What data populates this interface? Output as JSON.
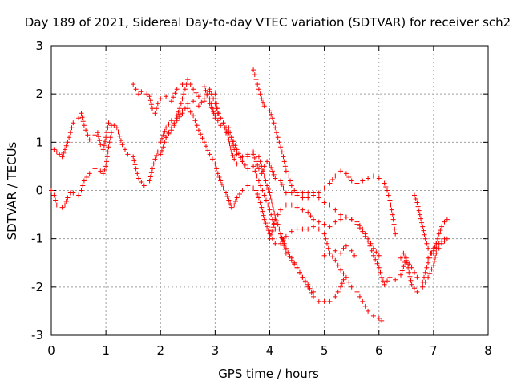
{
  "chart_data": {
    "type": "scatter",
    "title": "Day 189 of 2021, Sidereal Day-to-day VTEC variation (SDTVAR) for receiver sch2",
    "xlabel": "GPS time / hours",
    "ylabel": "SDTVAR / TECUs",
    "xlim": [
      0,
      8
    ],
    "ylim": [
      -3,
      3
    ],
    "x_ticks": [
      "0",
      "1",
      "2",
      "3",
      "4",
      "5",
      "6",
      "7",
      "8"
    ],
    "y_ticks": [
      "-3",
      "-2",
      "-1",
      "0",
      "1",
      "2",
      "3"
    ],
    "grid": true,
    "marker": "plus",
    "color": "#ff0000",
    "tracks": [
      [
        [
          0.0,
          0.0
        ],
        [
          0.05,
          -0.1
        ],
        [
          0.1,
          -0.3
        ],
        [
          0.2,
          -0.35
        ],
        [
          0.25,
          -0.3
        ],
        [
          0.3,
          -0.15
        ],
        [
          0.35,
          -0.05
        ],
        [
          0.4,
          -0.05
        ],
        [
          0.5,
          -0.1
        ],
        [
          0.55,
          0.0
        ],
        [
          0.6,
          0.2
        ],
        [
          0.7,
          0.35
        ],
        [
          0.8,
          0.45
        ],
        [
          0.9,
          0.4
        ],
        [
          0.95,
          0.35
        ],
        [
          1.0,
          0.5
        ],
        [
          1.05,
          0.9
        ],
        [
          1.1,
          1.2
        ],
        [
          1.2,
          1.3
        ],
        [
          1.3,
          0.95
        ],
        [
          1.4,
          0.75
        ],
        [
          1.5,
          0.7
        ],
        [
          1.55,
          0.45
        ],
        [
          1.6,
          0.25
        ],
        [
          1.7,
          0.1
        ],
        [
          1.8,
          0.2
        ],
        [
          1.85,
          0.45
        ],
        [
          1.9,
          0.65
        ],
        [
          1.95,
          0.8
        ],
        [
          2.0,
          0.75
        ],
        [
          2.05,
          0.9
        ],
        [
          2.1,
          1.1
        ],
        [
          2.2,
          1.25
        ],
        [
          2.3,
          1.45
        ],
        [
          2.4,
          1.6
        ],
        [
          2.5,
          1.8
        ],
        [
          2.6,
          1.85
        ],
        [
          2.7,
          1.75
        ],
        [
          2.8,
          1.9
        ],
        [
          2.9,
          2.05
        ],
        [
          3.0,
          2.0
        ],
        [
          3.05,
          1.6
        ],
        [
          3.1,
          1.5
        ],
        [
          3.15,
          1.4
        ],
        [
          3.2,
          1.2
        ],
        [
          3.25,
          1.3
        ],
        [
          3.3,
          1.1
        ],
        [
          3.35,
          0.85
        ],
        [
          3.4,
          0.75
        ],
        [
          3.5,
          0.7
        ],
        [
          3.6,
          0.75
        ],
        [
          3.7,
          0.8
        ],
        [
          3.8,
          0.7
        ],
        [
          3.85,
          0.5
        ],
        [
          3.9,
          0.3
        ],
        [
          3.95,
          0.1
        ],
        [
          4.0,
          -0.05
        ],
        [
          4.05,
          -0.3
        ],
        [
          4.1,
          -0.55
        ],
        [
          4.15,
          -0.7
        ],
        [
          4.2,
          -0.9
        ],
        [
          4.3,
          -1.2
        ],
        [
          4.4,
          -1.45
        ],
        [
          4.5,
          -1.6
        ],
        [
          4.6,
          -1.8
        ],
        [
          4.7,
          -1.95
        ],
        [
          4.8,
          -2.2
        ],
        [
          4.9,
          -2.3
        ],
        [
          5.0,
          -2.3
        ],
        [
          5.1,
          -2.3
        ],
        [
          5.2,
          -2.2
        ],
        [
          5.3,
          -2.0
        ],
        [
          5.35,
          -1.85
        ]
      ],
      [
        [
          0.05,
          0.85
        ],
        [
          0.1,
          0.8
        ],
        [
          0.15,
          0.75
        ],
        [
          0.2,
          0.7
        ],
        [
          0.25,
          0.85
        ],
        [
          0.3,
          1.0
        ],
        [
          0.35,
          1.2
        ],
        [
          0.4,
          1.4
        ],
        [
          0.5,
          1.5
        ],
        [
          0.55,
          1.6
        ],
        [
          0.6,
          1.35
        ],
        [
          0.7,
          1.05
        ],
        [
          0.8,
          1.15
        ],
        [
          0.85,
          1.2
        ],
        [
          0.9,
          0.95
        ],
        [
          0.95,
          0.85
        ],
        [
          1.0,
          1.1
        ],
        [
          1.05,
          1.4
        ],
        [
          1.1,
          1.35
        ],
        [
          1.15,
          1.35
        ]
      ],
      [
        [
          1.5,
          2.2
        ],
        [
          1.55,
          2.1
        ],
        [
          1.6,
          2.0
        ],
        [
          1.65,
          2.05
        ],
        [
          1.75,
          2.0
        ],
        [
          1.8,
          1.95
        ],
        [
          1.85,
          1.7
        ],
        [
          1.9,
          1.6
        ],
        [
          1.95,
          1.8
        ],
        [
          2.0,
          1.9
        ],
        [
          2.1,
          1.95
        ],
        [
          2.2,
          1.85
        ],
        [
          2.3,
          2.1
        ],
        [
          2.4,
          2.2
        ],
        [
          2.5,
          2.3
        ],
        [
          2.6,
          2.1
        ],
        [
          2.7,
          1.95
        ],
        [
          2.8,
          1.85
        ],
        [
          2.9,
          1.8
        ],
        [
          3.0,
          1.55
        ],
        [
          3.1,
          1.35
        ],
        [
          3.2,
          1.3
        ],
        [
          3.25,
          1.05
        ],
        [
          3.3,
          0.8
        ],
        [
          3.35,
          0.65
        ],
        [
          3.4,
          0.55
        ],
        [
          3.5,
          0.6
        ],
        [
          3.6,
          0.7
        ],
        [
          3.7,
          0.75
        ],
        [
          3.75,
          0.6
        ],
        [
          3.8,
          0.45
        ],
        [
          3.85,
          0.35
        ],
        [
          3.9,
          0.5
        ],
        [
          3.95,
          0.6
        ],
        [
          4.0,
          0.55
        ],
        [
          4.05,
          0.4
        ],
        [
          4.1,
          0.25
        ],
        [
          4.2,
          0.2
        ],
        [
          4.25,
          0.05
        ],
        [
          4.3,
          -0.05
        ],
        [
          4.4,
          -0.05
        ],
        [
          4.5,
          -0.05
        ],
        [
          4.6,
          -0.05
        ],
        [
          4.7,
          -0.05
        ],
        [
          4.8,
          -0.1
        ],
        [
          4.9,
          -0.15
        ],
        [
          5.0,
          -0.25
        ],
        [
          5.1,
          -0.3
        ],
        [
          5.2,
          -0.4
        ],
        [
          5.3,
          -0.5
        ],
        [
          5.4,
          -0.55
        ],
        [
          5.5,
          -0.6
        ],
        [
          5.6,
          -0.7
        ],
        [
          5.7,
          -0.85
        ],
        [
          5.8,
          -1.05
        ],
        [
          5.9,
          -1.35
        ],
        [
          6.0,
          -1.6
        ],
        [
          6.05,
          -1.8
        ],
        [
          6.1,
          -1.95
        ],
        [
          6.2,
          -1.8
        ],
        [
          6.3,
          -1.85
        ],
        [
          6.4,
          -1.75
        ],
        [
          6.5,
          -1.4
        ],
        [
          6.55,
          -1.7
        ],
        [
          6.6,
          -1.95
        ],
        [
          6.7,
          -2.1
        ],
        [
          6.8,
          -2.0
        ],
        [
          6.9,
          -1.8
        ],
        [
          7.0,
          -1.55
        ],
        [
          7.05,
          -1.3
        ],
        [
          7.1,
          -1.2
        ],
        [
          7.2,
          -1.0
        ]
      ],
      [
        [
          2.5,
          2.3
        ],
        [
          2.45,
          2.1
        ],
        [
          2.4,
          1.9
        ],
        [
          2.35,
          1.7
        ],
        [
          2.3,
          1.55
        ],
        [
          2.2,
          1.45
        ],
        [
          2.1,
          1.3
        ],
        [
          2.05,
          1.15
        ],
        [
          2.0,
          1.0
        ],
        [
          2.1,
          1.1
        ],
        [
          2.2,
          1.3
        ],
        [
          2.3,
          1.5
        ],
        [
          2.4,
          1.65
        ],
        [
          2.5,
          1.7
        ],
        [
          2.6,
          1.55
        ],
        [
          2.7,
          1.25
        ],
        [
          2.8,
          1.0
        ],
        [
          2.9,
          0.75
        ],
        [
          3.0,
          0.55
        ],
        [
          3.05,
          0.35
        ],
        [
          3.1,
          0.2
        ],
        [
          3.15,
          0.05
        ],
        [
          3.2,
          -0.05
        ],
        [
          3.25,
          -0.2
        ],
        [
          3.3,
          -0.35
        ],
        [
          3.35,
          -0.3
        ],
        [
          3.4,
          -0.15
        ],
        [
          3.5,
          0.0
        ],
        [
          3.6,
          0.1
        ],
        [
          3.7,
          0.05
        ],
        [
          3.75,
          0.0
        ],
        [
          3.8,
          -0.15
        ],
        [
          3.85,
          -0.35
        ],
        [
          3.9,
          -0.6
        ],
        [
          3.95,
          -0.75
        ],
        [
          4.0,
          -0.9
        ],
        [
          4.05,
          -1.0
        ],
        [
          4.1,
          -1.1
        ],
        [
          4.2,
          -1.1
        ],
        [
          4.3,
          -0.95
        ],
        [
          4.4,
          -0.85
        ],
        [
          4.5,
          -0.8
        ],
        [
          4.6,
          -0.8
        ],
        [
          4.7,
          -0.8
        ],
        [
          4.8,
          -0.75
        ],
        [
          4.9,
          -0.8
        ],
        [
          5.0,
          -0.9
        ],
        [
          5.05,
          -1.1
        ],
        [
          5.1,
          -1.3
        ],
        [
          5.2,
          -1.45
        ],
        [
          5.3,
          -1.65
        ],
        [
          5.4,
          -1.8
        ],
        [
          5.45,
          -1.9
        ],
        [
          5.5,
          -2.0
        ],
        [
          5.6,
          -2.1
        ],
        [
          5.7,
          -2.3
        ],
        [
          5.8,
          -2.5
        ],
        [
          5.9,
          -2.6
        ],
        [
          6.0,
          -2.65
        ],
        [
          6.05,
          -2.7
        ]
      ],
      [
        [
          3.7,
          2.5
        ],
        [
          3.75,
          2.3
        ],
        [
          3.8,
          2.1
        ],
        [
          3.85,
          1.9
        ],
        [
          3.9,
          1.75
        ],
        [
          4.0,
          1.65
        ],
        [
          4.05,
          1.5
        ],
        [
          4.1,
          1.3
        ],
        [
          4.15,
          1.1
        ],
        [
          4.2,
          0.9
        ],
        [
          4.25,
          0.7
        ],
        [
          4.3,
          0.4
        ],
        [
          4.35,
          0.3
        ],
        [
          4.4,
          0.1
        ],
        [
          4.45,
          0.0
        ],
        [
          4.5,
          -0.1
        ],
        [
          4.6,
          -0.15
        ],
        [
          4.7,
          -0.15
        ],
        [
          4.8,
          -0.05
        ],
        [
          4.9,
          -0.05
        ],
        [
          5.0,
          0.05
        ],
        [
          5.1,
          0.15
        ],
        [
          5.2,
          0.3
        ],
        [
          5.3,
          0.4
        ],
        [
          5.4,
          0.35
        ],
        [
          5.5,
          0.2
        ],
        [
          5.6,
          0.15
        ],
        [
          5.7,
          0.2
        ],
        [
          5.8,
          0.25
        ],
        [
          5.9,
          0.3
        ],
        [
          6.0,
          0.25
        ],
        [
          6.1,
          0.15
        ],
        [
          6.15,
          0.0
        ],
        [
          6.2,
          -0.2
        ],
        [
          6.25,
          -0.5
        ],
        [
          6.3,
          -0.9
        ]
      ],
      [
        [
          3.0,
          1.5
        ],
        [
          2.95,
          1.7
        ],
        [
          2.9,
          1.9
        ],
        [
          2.85,
          2.0
        ],
        [
          2.8,
          2.15
        ],
        [
          2.9,
          2.1
        ],
        [
          3.0,
          1.8
        ],
        [
          3.1,
          1.5
        ],
        [
          3.2,
          1.3
        ],
        [
          3.3,
          1.1
        ],
        [
          3.4,
          0.85
        ],
        [
          3.5,
          0.6
        ],
        [
          3.6,
          0.45
        ],
        [
          3.7,
          0.5
        ],
        [
          3.8,
          0.2
        ],
        [
          3.9,
          -0.1
        ],
        [
          4.0,
          -0.4
        ],
        [
          4.05,
          -0.6
        ],
        [
          4.1,
          -0.8
        ],
        [
          4.2,
          -0.9
        ],
        [
          4.3,
          -1.3
        ],
        [
          4.4,
          -1.4
        ],
        [
          4.5,
          -1.6
        ],
        [
          4.6,
          -1.8
        ],
        [
          4.7,
          -2.0
        ],
        [
          4.8,
          -2.1
        ]
      ],
      [
        [
          4.0,
          -1.0
        ],
        [
          4.1,
          -0.6
        ],
        [
          4.2,
          -0.4
        ],
        [
          4.3,
          -0.3
        ],
        [
          4.4,
          -0.3
        ],
        [
          4.5,
          -0.35
        ],
        [
          4.6,
          -0.4
        ],
        [
          4.7,
          -0.45
        ],
        [
          4.8,
          -0.6
        ],
        [
          4.9,
          -0.65
        ],
        [
          5.0,
          -0.7
        ],
        [
          5.1,
          -0.75
        ],
        [
          5.2,
          -0.65
        ],
        [
          5.3,
          -0.6
        ],
        [
          5.4,
          -0.55
        ],
        [
          5.5,
          -0.6
        ],
        [
          5.6,
          -0.65
        ],
        [
          5.7,
          -0.8
        ],
        [
          5.8,
          -1.0
        ],
        [
          5.9,
          -1.2
        ],
        [
          6.0,
          -1.35
        ]
      ],
      [
        [
          5.0,
          -1.35
        ],
        [
          5.1,
          -1.3
        ],
        [
          5.2,
          -1.25
        ],
        [
          5.3,
          -1.3
        ],
        [
          5.35,
          -1.2
        ],
        [
          5.4,
          -1.15
        ],
        [
          5.5,
          -1.25
        ],
        [
          5.55,
          -1.35
        ]
      ],
      [
        [
          6.4,
          -1.4
        ],
        [
          6.45,
          -1.3
        ],
        [
          6.5,
          -1.45
        ],
        [
          6.6,
          -1.6
        ],
        [
          6.7,
          -1.8
        ],
        [
          6.8,
          -1.9
        ],
        [
          6.85,
          -1.7
        ],
        [
          6.9,
          -1.5
        ],
        [
          7.0,
          -1.2
        ],
        [
          7.05,
          -1.1
        ]
      ],
      [
        [
          6.65,
          -0.1
        ],
        [
          6.7,
          -0.25
        ],
        [
          6.75,
          -0.5
        ],
        [
          6.8,
          -0.75
        ],
        [
          6.85,
          -1.0
        ],
        [
          6.9,
          -1.2
        ],
        [
          6.95,
          -1.3
        ],
        [
          7.0,
          -1.25
        ],
        [
          7.05,
          -1.1
        ],
        [
          7.1,
          -0.9
        ],
        [
          7.15,
          -0.75
        ],
        [
          7.2,
          -0.65
        ],
        [
          7.25,
          -0.6
        ]
      ],
      [
        [
          6.9,
          -1.4
        ],
        [
          7.0,
          -1.3
        ],
        [
          7.05,
          -1.2
        ],
        [
          7.1,
          -1.1
        ],
        [
          7.15,
          -1.05
        ],
        [
          7.2,
          -1.05
        ],
        [
          7.25,
          -1.0
        ]
      ]
    ]
  }
}
